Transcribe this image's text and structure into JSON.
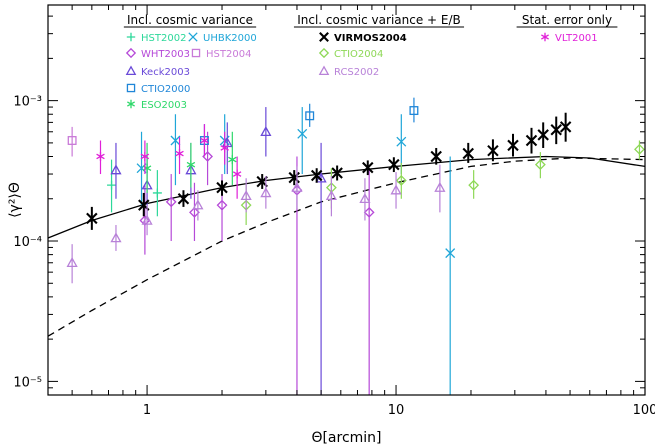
{
  "chart_data": {
    "type": "scatter",
    "xlabel": "Θ[arcmin]",
    "ylabel": "⟨γ²⟩Θ",
    "xscale": "log",
    "yscale": "log",
    "xlim": [
      0.4,
      100
    ],
    "ylim": [
      8e-06,
      0.0048
    ],
    "x_ticks": [
      1,
      10,
      100
    ],
    "x_tick_labels": [
      "1",
      "10",
      "100"
    ],
    "y_ticks": [
      1e-05,
      0.0001,
      0.001
    ],
    "y_tick_labels": [
      "10⁻⁵",
      "10⁻⁴",
      "10⁻³"
    ],
    "legend_groups": [
      {
        "title": "Incl. cosmic variance",
        "entries": [
          {
            "series": "HST2002"
          },
          {
            "series": "UHBK2000"
          },
          {
            "series": "WHT2003"
          },
          {
            "series": "HST2004"
          },
          {
            "series": "Keck2003"
          },
          {
            "series": "CTIO2000"
          },
          {
            "series": "ESO2003"
          }
        ]
      },
      {
        "title": "Incl. cosmic variance + E/B",
        "entries": [
          {
            "series": "VIRMOS2004"
          },
          {
            "series": "CTIO2004"
          },
          {
            "series": "RCS2002"
          }
        ]
      },
      {
        "title": "Stat. error only",
        "entries": [
          {
            "series": "VLT2001"
          }
        ]
      }
    ],
    "series": [
      {
        "name": "HST2002",
        "color": "#2dd89a",
        "marker": "plus",
        "points": [
          [
            0.72,
            0.00025,
            0.00016,
            0.00038
          ],
          [
            1.1,
            0.00022,
            0.00015,
            0.00032
          ]
        ]
      },
      {
        "name": "UHBK2000",
        "color": "#1fa6d8",
        "marker": "x",
        "points": [
          [
            0.95,
            0.00033,
            0.00018,
            0.0006
          ],
          [
            1.3,
            0.00052,
            0.00025,
            0.0008
          ],
          [
            2.05,
            0.00052,
            0.0003,
            0.0008
          ],
          [
            4.2,
            0.00058,
            0.0003,
            0.0009
          ],
          [
            10.5,
            0.00051,
            0.0003,
            0.0008
          ],
          [
            16.5,
            8.2e-05,
            8e-06,
            0.0004
          ]
        ]
      },
      {
        "name": "WHT2003",
        "color": "#b649d8",
        "marker": "diamond",
        "points": [
          [
            0.98,
            0.00014,
            8e-05,
            0.00025
          ],
          [
            1.25,
            0.00019,
            0.0001,
            0.0003
          ],
          [
            1.55,
            0.00016,
            0.0001,
            0.00026
          ],
          [
            1.75,
            0.0004,
            0.00025,
            0.0006
          ],
          [
            2.0,
            0.00018,
            0.0001,
            0.0003
          ],
          [
            4.0,
            0.00023,
            8e-06,
            0.0004
          ],
          [
            7.8,
            0.00016,
            8e-06,
            0.00032
          ]
        ]
      },
      {
        "name": "HST2004",
        "color": "#c97ad8",
        "marker": "square",
        "points": [
          [
            0.5,
            0.00052,
            0.0004,
            0.00065
          ]
        ]
      },
      {
        "name": "Keck2003",
        "color": "#6a4ad8",
        "marker": "triangle",
        "points": [
          [
            0.75,
            0.00032,
            0.0002,
            0.0005
          ],
          [
            1.0,
            0.00025,
            0.00015,
            0.0004
          ],
          [
            1.5,
            0.00032,
            0.0002,
            0.0005
          ],
          [
            2.1,
            0.0005,
            0.0003,
            0.0007
          ],
          [
            3.0,
            0.0006,
            0.0004,
            0.0009
          ],
          [
            5.0,
            0.00028,
            8e-06,
            0.0005
          ]
        ]
      },
      {
        "name": "CTIO2000",
        "color": "#1f86d8",
        "marker": "square",
        "points": [
          [
            1.7,
            0.00052,
            0.0004,
            0.00068
          ],
          [
            4.5,
            0.00078,
            0.00065,
            0.00095
          ],
          [
            11.8,
            0.00085,
            0.0007,
            0.00105
          ]
        ]
      },
      {
        "name": "ESO2003",
        "color": "#2ed86a",
        "marker": "asterisk",
        "points": [
          [
            1.0,
            0.00033,
            0.00022,
            0.0005
          ],
          [
            1.5,
            0.00035,
            0.00024,
            0.0005
          ],
          [
            2.2,
            0.00038,
            0.00025,
            0.0006
          ]
        ]
      },
      {
        "name": "VIRMOS2004",
        "color": "#000000",
        "marker": "x",
        "points": [
          [
            0.6,
            0.000145,
            0.00012,
            0.000175
          ],
          [
            0.97,
            0.00018,
            0.00015,
            0.00022
          ],
          [
            1.4,
            0.0002,
            0.000175,
            0.00023
          ],
          [
            2.0,
            0.00024,
            0.00021,
            0.00027
          ],
          [
            2.9,
            0.000265,
            0.000235,
            0.0003
          ],
          [
            3.9,
            0.000283,
            0.00025,
            0.00032
          ],
          [
            4.8,
            0.000293,
            0.00026,
            0.00033
          ],
          [
            5.8,
            0.000305,
            0.00027,
            0.000345
          ],
          [
            7.7,
            0.000333,
            0.000295,
            0.000375
          ],
          [
            9.8,
            0.00035,
            0.00031,
            0.000395
          ],
          [
            14.5,
            0.0004,
            0.00035,
            0.00046
          ],
          [
            19.5,
            0.00042,
            0.00036,
            0.0005
          ],
          [
            24.5,
            0.00044,
            0.00037,
            0.00053
          ],
          [
            29.5,
            0.00048,
            0.0004,
            0.00058
          ],
          [
            35.0,
            0.00052,
            0.00042,
            0.00064
          ],
          [
            39.0,
            0.00057,
            0.00046,
            0.0007
          ],
          [
            44.0,
            0.00062,
            0.00049,
            0.00077
          ],
          [
            48.0,
            0.00065,
            0.00051,
            0.00082
          ]
        ]
      },
      {
        "name": "CTIO2004",
        "color": "#8ed857",
        "marker": "diamond",
        "points": [
          [
            2.5,
            0.00018,
            0.00013,
            0.00025
          ],
          [
            5.5,
            0.00024,
            0.00017,
            0.00033
          ],
          [
            10.5,
            0.00027,
            0.0002,
            0.00036
          ],
          [
            20.5,
            0.00025,
            0.0002,
            0.00032
          ],
          [
            38.0,
            0.00035,
            0.00028,
            0.00043
          ],
          [
            95.0,
            0.00045,
            0.00038,
            0.00052
          ]
        ]
      },
      {
        "name": "RCS2002",
        "color": "#b882d8",
        "marker": "triangle",
        "points": [
          [
            0.5,
            7e-05,
            5e-05,
            9.5e-05
          ],
          [
            0.75,
            0.000105,
            8.5e-05,
            0.00013
          ],
          [
            1.0,
            0.00014,
            0.00011,
            0.00018
          ],
          [
            1.6,
            0.00018,
            0.00014,
            0.00023
          ],
          [
            2.5,
            0.00021,
            0.00016,
            0.00028
          ],
          [
            3.0,
            0.00022,
            0.00017,
            0.00029
          ],
          [
            4.0,
            0.00024,
            0.00017,
            0.00034
          ],
          [
            5.5,
            0.00021,
            0.00015,
            0.00029
          ],
          [
            7.5,
            0.0002,
            0.00014,
            0.00028
          ],
          [
            10.0,
            0.00023,
            0.00017,
            0.00031
          ],
          [
            15.0,
            0.00024,
            0.00016,
            0.00035
          ]
        ]
      },
      {
        "name": "VLT2001",
        "color": "#e020d8",
        "marker": "asterisk",
        "points": [
          [
            0.65,
            0.0004,
            0.0003,
            0.00052
          ],
          [
            0.98,
            0.0004,
            0.0003,
            0.00052
          ],
          [
            1.35,
            0.00042,
            0.0003,
            0.00055
          ],
          [
            1.7,
            0.00052,
            0.0004,
            0.00068
          ],
          [
            2.05,
            0.00046,
            0.00035,
            0.0006
          ],
          [
            2.3,
            0.0003,
            0.0002,
            0.0004
          ]
        ]
      }
    ],
    "model_curves": [
      {
        "style": "solid",
        "color": "#000000",
        "points": [
          [
            0.4,
            0.000105
          ],
          [
            0.6,
            0.00014
          ],
          [
            1.0,
            0.000185
          ],
          [
            2.0,
            0.00024
          ],
          [
            3.0,
            0.00027
          ],
          [
            5.0,
            0.0003
          ],
          [
            10.0,
            0.00034
          ],
          [
            20.0,
            0.00038
          ],
          [
            40.0,
            0.0004
          ],
          [
            60.0,
            0.00039
          ],
          [
            100.0,
            0.00034
          ]
        ]
      },
      {
        "style": "dashed",
        "color": "#000000",
        "points": [
          [
            0.4,
            2.1e-05
          ],
          [
            0.6,
            3.2e-05
          ],
          [
            1.0,
            5.3e-05
          ],
          [
            2.0,
            0.0001
          ],
          [
            3.0,
            0.000135
          ],
          [
            5.0,
            0.00019
          ],
          [
            10.0,
            0.00026
          ],
          [
            20.0,
            0.00034
          ],
          [
            30.0,
            0.00037
          ],
          [
            50.0,
            0.00039
          ],
          [
            100.0,
            0.00038
          ]
        ]
      }
    ]
  }
}
